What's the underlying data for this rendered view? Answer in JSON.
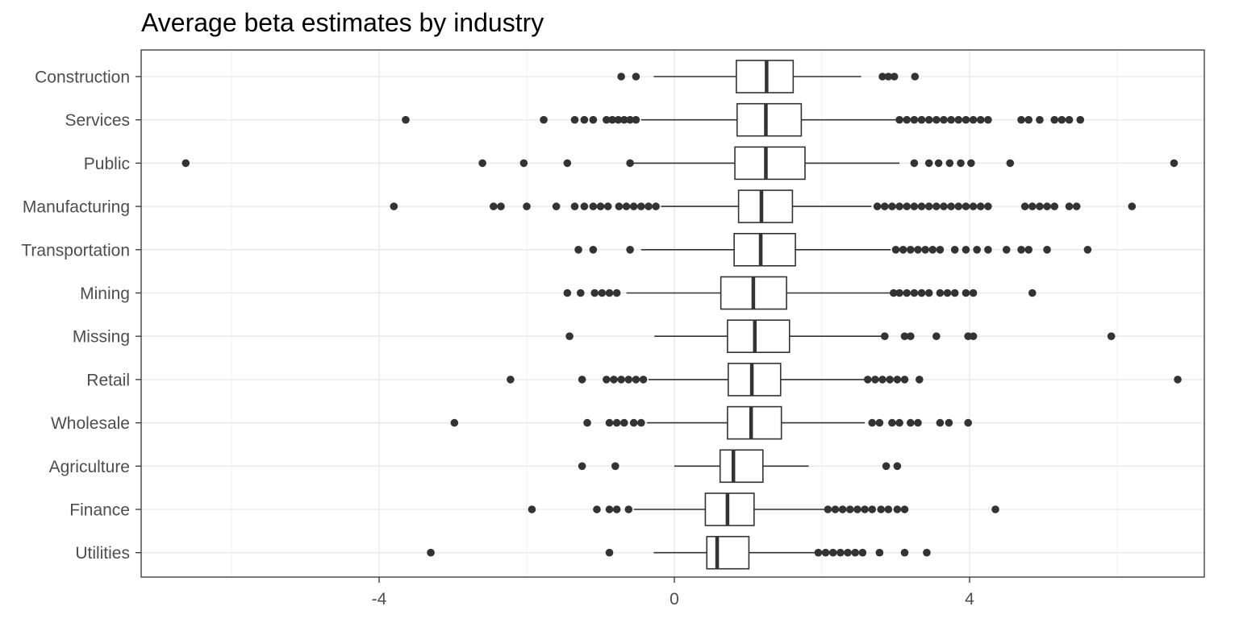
{
  "chart_data": {
    "type": "boxplot",
    "orientation": "horizontal",
    "title": "Average beta estimates by industry",
    "xlabel": "",
    "ylabel": "",
    "xlim": [
      -7.25,
      7.3
    ],
    "x_ticks": [
      -4,
      0,
      4
    ],
    "x_tick_labels": [
      "-4",
      "0",
      "4"
    ],
    "grid": true,
    "categories": [
      "Construction",
      "Services",
      "Public",
      "Manufacturing",
      "Transportation",
      "Mining",
      "Missing",
      "Retail",
      "Wholesale",
      "Agriculture",
      "Finance",
      "Utilities"
    ],
    "boxes": [
      {
        "category": "Construction",
        "whisker_low": -0.28,
        "q1": 0.84,
        "median": 1.25,
        "q3": 1.61,
        "whisker_high": 2.53,
        "outliers": [
          -0.72,
          -0.52,
          2.82,
          2.9,
          2.98,
          3.26
        ]
      },
      {
        "category": "Services",
        "whisker_low": -0.45,
        "q1": 0.85,
        "median": 1.24,
        "q3": 1.72,
        "whisker_high": 3.0,
        "outliers": [
          -3.64,
          -1.77,
          -1.35,
          -1.22,
          -1.1,
          -0.92,
          -0.84,
          -0.76,
          -0.68,
          -0.6,
          -0.52,
          3.05,
          3.15,
          3.25,
          3.35,
          3.45,
          3.55,
          3.65,
          3.75,
          3.85,
          3.95,
          4.05,
          4.15,
          4.25,
          4.7,
          4.8,
          4.95,
          5.15,
          5.25,
          5.35,
          5.5
        ]
      },
      {
        "category": "Public",
        "whisker_low": -0.6,
        "q1": 0.82,
        "median": 1.24,
        "q3": 1.77,
        "whisker_high": 3.05,
        "outliers": [
          -6.62,
          -2.6,
          -2.04,
          -1.45,
          -0.6,
          3.25,
          3.45,
          3.58,
          3.73,
          3.88,
          4.02,
          4.55,
          6.77
        ]
      },
      {
        "category": "Manufacturing",
        "whisker_low": -0.18,
        "q1": 0.87,
        "median": 1.18,
        "q3": 1.6,
        "whisker_high": 2.67,
        "outliers": [
          -3.8,
          -2.45,
          -2.35,
          -2.0,
          -1.6,
          -1.35,
          -1.22,
          -1.1,
          -1.0,
          -0.9,
          -0.75,
          -0.65,
          -0.55,
          -0.45,
          -0.35,
          -0.25,
          2.75,
          2.85,
          2.95,
          3.05,
          3.15,
          3.25,
          3.35,
          3.45,
          3.55,
          3.65,
          3.75,
          3.85,
          3.95,
          4.05,
          4.15,
          4.25,
          4.75,
          4.85,
          4.95,
          5.05,
          5.15,
          5.35,
          5.45,
          6.2
        ]
      },
      {
        "category": "Transportation",
        "whisker_low": -0.45,
        "q1": 0.81,
        "median": 1.17,
        "q3": 1.64,
        "whisker_high": 2.93,
        "outliers": [
          -1.3,
          -1.1,
          -0.6,
          3.0,
          3.1,
          3.2,
          3.3,
          3.4,
          3.5,
          3.6,
          3.8,
          3.95,
          4.1,
          4.25,
          4.5,
          4.7,
          4.8,
          5.05,
          5.6
        ]
      },
      {
        "category": "Mining",
        "whisker_low": -0.65,
        "q1": 0.63,
        "median": 1.07,
        "q3": 1.52,
        "whisker_high": 2.93,
        "outliers": [
          -1.45,
          -1.27,
          -1.08,
          -0.98,
          -0.88,
          -0.78,
          2.97,
          3.05,
          3.15,
          3.25,
          3.35,
          3.45,
          3.6,
          3.7,
          3.8,
          3.95,
          4.05,
          4.85
        ]
      },
      {
        "category": "Missing",
        "whisker_low": -0.27,
        "q1": 0.72,
        "median": 1.09,
        "q3": 1.56,
        "whisker_high": 2.82,
        "outliers": [
          -1.42,
          2.85,
          3.12,
          3.2,
          3.55,
          3.98,
          4.05,
          5.92
        ]
      },
      {
        "category": "Retail",
        "whisker_low": -0.35,
        "q1": 0.73,
        "median": 1.05,
        "q3": 1.44,
        "whisker_high": 2.58,
        "outliers": [
          -2.22,
          -1.25,
          -0.92,
          -0.82,
          -0.72,
          -0.62,
          -0.52,
          -0.42,
          2.62,
          2.72,
          2.82,
          2.92,
          3.02,
          3.12,
          3.32,
          6.82
        ]
      },
      {
        "category": "Wholesale",
        "whisker_low": -0.37,
        "q1": 0.72,
        "median": 1.04,
        "q3": 1.45,
        "whisker_high": 2.58,
        "outliers": [
          -2.98,
          -1.18,
          -0.88,
          -0.78,
          -0.68,
          -0.55,
          -0.45,
          2.68,
          2.78,
          2.95,
          3.05,
          3.2,
          3.3,
          3.6,
          3.72,
          3.98
        ]
      },
      {
        "category": "Agriculture",
        "whisker_low": 0.0,
        "q1": 0.62,
        "median": 0.8,
        "q3": 1.2,
        "whisker_high": 1.82,
        "outliers": [
          -1.25,
          -0.8,
          2.87,
          3.02
        ]
      },
      {
        "category": "Finance",
        "whisker_low": -0.55,
        "q1": 0.42,
        "median": 0.72,
        "q3": 1.08,
        "whisker_high": 2.03,
        "outliers": [
          -1.93,
          -1.05,
          -0.88,
          -0.78,
          -0.62,
          2.08,
          2.18,
          2.28,
          2.38,
          2.48,
          2.58,
          2.68,
          2.8,
          2.9,
          3.02,
          3.12,
          4.35
        ]
      },
      {
        "category": "Utilities",
        "whisker_low": -0.28,
        "q1": 0.44,
        "median": 0.58,
        "q3": 1.01,
        "whisker_high": 1.9,
        "outliers": [
          -3.3,
          -0.88,
          1.95,
          2.05,
          2.15,
          2.25,
          2.35,
          2.45,
          2.55,
          2.78,
          3.12,
          3.42
        ]
      }
    ]
  }
}
